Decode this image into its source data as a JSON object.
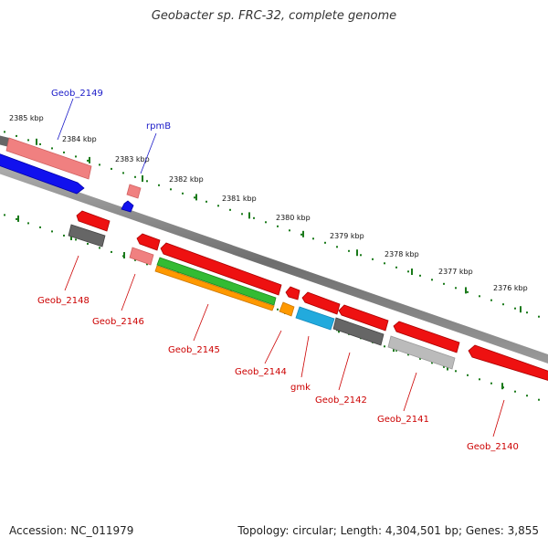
{
  "title": "Geobacter sp. FRC-32, complete genome",
  "footer": {
    "accession_label": "Accession:",
    "accession": "NC_011979",
    "topology_label": "Topology:",
    "topology": "circular",
    "length_label": "Length:",
    "length": "4,304,501 bp",
    "genes_label": "Genes:",
    "genes": "3,855"
  },
  "colors": {
    "background": "#ffffff",
    "backbone": "#808080",
    "tick": "#1a7a1a",
    "forward_label": "#1a1ac8",
    "reverse_label": "#cc0000",
    "gene_red": "#ee1111",
    "gene_pink": "#f08080",
    "gene_blue": "#1111ee",
    "gene_gray": "#666666",
    "gene_lightgray": "#bbbbbb",
    "gene_green": "#33bb33",
    "gene_orange": "#ff9900",
    "gene_cyan": "#22aadd"
  },
  "scale_ticks": [
    {
      "label": "2385 kbp"
    },
    {
      "label": "2384 kbp"
    },
    {
      "label": "2383 kbp"
    },
    {
      "label": "2382 kbp"
    },
    {
      "label": "2381 kbp"
    },
    {
      "label": "2380 kbp"
    },
    {
      "label": "2379 kbp"
    },
    {
      "label": "2378 kbp"
    },
    {
      "label": "2377 kbp"
    },
    {
      "label": "2376 kbp"
    }
  ],
  "gene_labels": [
    {
      "name": "Geob_2149",
      "strand": "forward"
    },
    {
      "name": "rpmB",
      "strand": "forward"
    },
    {
      "name": "Geob_2148",
      "strand": "reverse"
    },
    {
      "name": "Geob_2146",
      "strand": "reverse"
    },
    {
      "name": "Geob_2145",
      "strand": "reverse"
    },
    {
      "name": "Geob_2144",
      "strand": "reverse"
    },
    {
      "name": "gmk",
      "strand": "reverse"
    },
    {
      "name": "Geob_2142",
      "strand": "reverse"
    },
    {
      "name": "Geob_2141",
      "strand": "reverse"
    },
    {
      "name": "Geob_2140",
      "strand": "reverse"
    }
  ]
}
